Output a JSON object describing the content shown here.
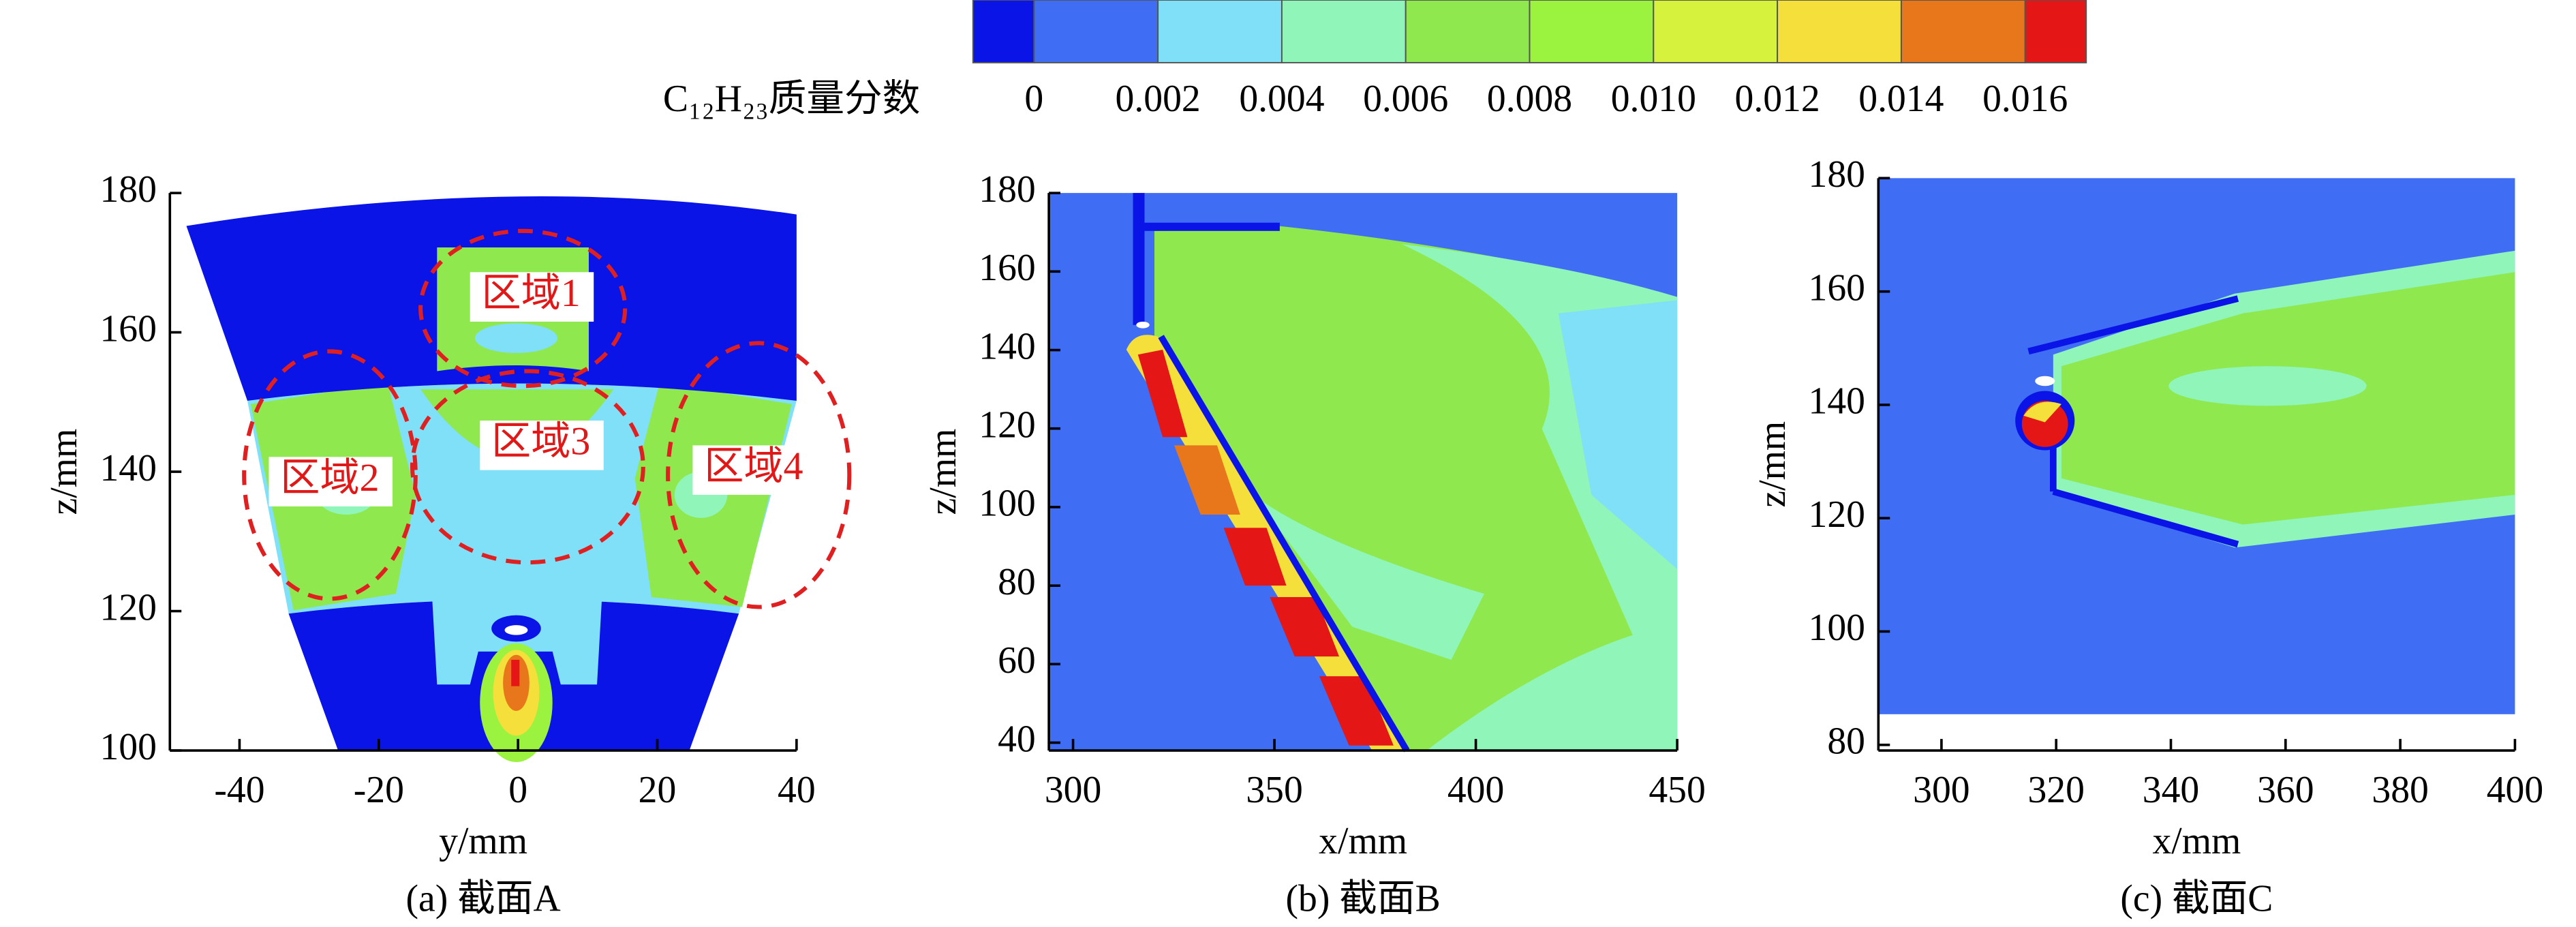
{
  "colorbar": {
    "label": "C₁₂H₂₃质量分数",
    "levels": [
      0,
      0.002,
      0.004,
      0.006,
      0.008,
      {
        "value": 0.01,
        "label": "0.010"
      },
      0.012,
      0.014,
      0.016
    ],
    "colors": [
      "#0a14e6",
      "#3f6ef5",
      "#7fe0f8",
      "#8ff5b8",
      "#8ee84e",
      "#9bf23f",
      "#d6f23c",
      "#f5df3a",
      "#e8761b",
      "#e41616"
    ]
  },
  "chart_data": [
    {
      "type": "contour",
      "caption": "(a) 截面A",
      "x_label": "y/mm",
      "y_label": "z/mm",
      "xlim": [
        -50,
        40
      ],
      "ylim": [
        100,
        180
      ],
      "xticks": [
        -40,
        -20,
        0,
        20,
        40
      ],
      "yticks": [
        100,
        120,
        140,
        160,
        180
      ],
      "annotations": [
        "区域1",
        "区域2",
        "区域3",
        "区域4"
      ]
    },
    {
      "type": "contour",
      "caption": "(b) 截面B",
      "x_label": "x/mm",
      "y_label": "z/mm",
      "xlim": [
        294,
        450
      ],
      "ylim": [
        38,
        180
      ],
      "xticks": [
        300,
        350,
        400,
        450
      ],
      "yticks": [
        40,
        60,
        80,
        100,
        120,
        140,
        160,
        180
      ]
    },
    {
      "type": "contour",
      "caption": "(c) 截面C",
      "x_label": "x/mm",
      "y_label": "z/mm",
      "xlim": [
        289,
        400
      ],
      "ylim": [
        79,
        180
      ],
      "xticks": [
        300,
        320,
        340,
        360,
        380,
        400
      ],
      "yticks": [
        80,
        100,
        120,
        140,
        160,
        180
      ]
    }
  ]
}
